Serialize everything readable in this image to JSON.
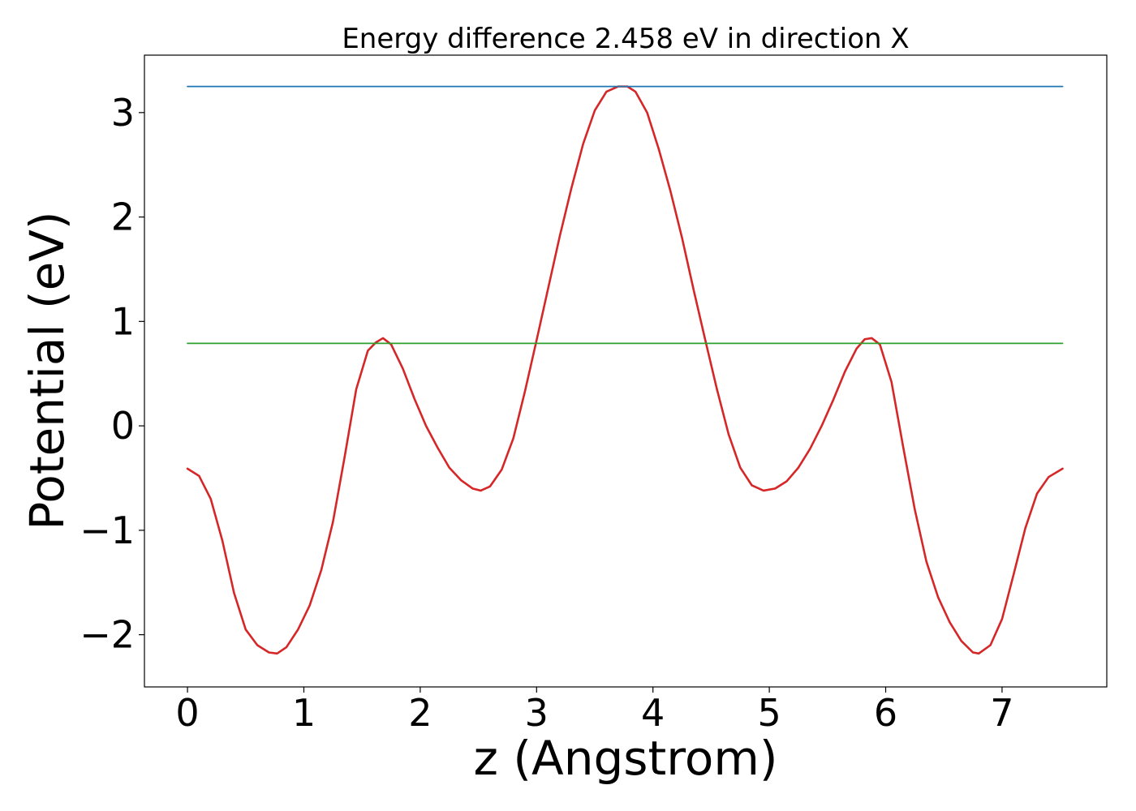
{
  "chart_data": {
    "type": "line",
    "title": "Energy difference 2.458 eV in direction X",
    "xlabel": "z (Angstrom)",
    "ylabel": "Potential (eV)",
    "xlim": [
      -0.37,
      7.9
    ],
    "ylim": [
      -2.5,
      3.55
    ],
    "xticks": [
      0,
      1,
      2,
      3,
      4,
      5,
      6,
      7
    ],
    "yticks": [
      -2,
      -1,
      0,
      1,
      2,
      3
    ],
    "xtick_labels": [
      "0",
      "1",
      "2",
      "3",
      "4",
      "5",
      "6",
      "7"
    ],
    "ytick_labels": [
      "−2",
      "−1",
      "0",
      "1",
      "2",
      "3"
    ],
    "grid": false,
    "legend": "none",
    "series": [
      {
        "color": "#d62728",
        "x": [
          0.0,
          0.1,
          0.2,
          0.3,
          0.4,
          0.5,
          0.6,
          0.7,
          0.77,
          0.85,
          0.95,
          1.05,
          1.15,
          1.25,
          1.35,
          1.45,
          1.55,
          1.62,
          1.68,
          1.75,
          1.85,
          1.95,
          2.05,
          2.15,
          2.25,
          2.35,
          2.45,
          2.52,
          2.6,
          2.7,
          2.8,
          2.9,
          3.0,
          3.1,
          3.2,
          3.3,
          3.4,
          3.5,
          3.6,
          3.7,
          3.78,
          3.85,
          3.95,
          4.05,
          4.15,
          4.25,
          4.35,
          4.45,
          4.55,
          4.65,
          4.75,
          4.85,
          4.95,
          5.05,
          5.15,
          5.25,
          5.35,
          5.45,
          5.55,
          5.65,
          5.75,
          5.82,
          5.88,
          5.95,
          6.05,
          6.15,
          6.25,
          6.35,
          6.45,
          6.55,
          6.65,
          6.75,
          6.8,
          6.9,
          7.0,
          7.1,
          7.2,
          7.3,
          7.4,
          7.52
        ],
        "y": [
          -0.41,
          -0.48,
          -0.7,
          -1.1,
          -1.6,
          -1.95,
          -2.1,
          -2.17,
          -2.18,
          -2.12,
          -1.95,
          -1.72,
          -1.38,
          -0.92,
          -0.3,
          0.35,
          0.72,
          0.8,
          0.84,
          0.78,
          0.55,
          0.26,
          0.0,
          -0.21,
          -0.4,
          -0.52,
          -0.6,
          -0.62,
          -0.58,
          -0.42,
          -0.12,
          0.33,
          0.82,
          1.32,
          1.82,
          2.28,
          2.7,
          3.02,
          3.2,
          3.25,
          3.25,
          3.2,
          3.0,
          2.65,
          2.25,
          1.8,
          1.3,
          0.82,
          0.35,
          -0.08,
          -0.4,
          -0.57,
          -0.62,
          -0.6,
          -0.53,
          -0.4,
          -0.22,
          0.0,
          0.25,
          0.52,
          0.74,
          0.83,
          0.84,
          0.78,
          0.42,
          -0.2,
          -0.8,
          -1.3,
          -1.64,
          -1.88,
          -2.06,
          -2.17,
          -2.18,
          -2.1,
          -1.85,
          -1.42,
          -0.98,
          -0.65,
          -0.49,
          -0.41
        ]
      },
      {
        "color": "#1f77b4",
        "x": [
          0,
          7.52
        ],
        "y": [
          3.25,
          3.25
        ]
      },
      {
        "color": "#2ca02c",
        "x": [
          0,
          7.52
        ],
        "y": [
          0.79,
          0.79
        ]
      }
    ]
  }
}
